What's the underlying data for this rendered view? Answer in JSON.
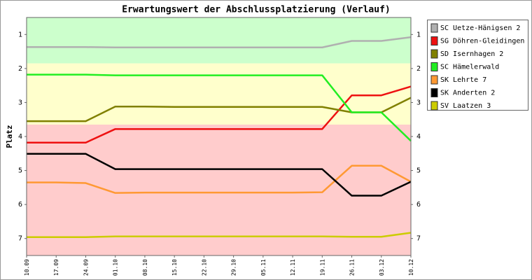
{
  "chart_data": {
    "type": "line",
    "title": "Erwartungswert der Abschlussplatzierung (Verlauf)",
    "y_label": "Platz",
    "categories": [
      "10.09",
      "17.09",
      "24.09",
      "01.10",
      "08.10",
      "15.10",
      "22.10",
      "29.10",
      "05.11",
      "12.11",
      "19.11",
      "26.11",
      "03.12",
      "10.12"
    ],
    "ylim": [
      7.5,
      0.5
    ],
    "yticks": [
      1,
      2,
      3,
      4,
      5,
      6,
      7
    ],
    "bands": [
      {
        "from": 0.5,
        "to": 1.85,
        "color": "#ccffcc"
      },
      {
        "from": 1.85,
        "to": 3.65,
        "color": "#ffffcc"
      },
      {
        "from": 3.65,
        "to": 7.5,
        "color": "#ffcccc"
      }
    ],
    "legend": "right",
    "series": [
      {
        "name": "SC Uetze-Hänigsen 2",
        "color": "#b0b0b0",
        "values": [
          1.37,
          1.37,
          1.37,
          1.38,
          1.38,
          1.38,
          1.38,
          1.38,
          1.38,
          1.38,
          1.38,
          1.19,
          1.19,
          1.08
        ]
      },
      {
        "name": "SG Döhren-Gleidingen",
        "color": "#ee1111",
        "values": [
          4.18,
          4.18,
          4.18,
          3.78,
          3.78,
          3.78,
          3.78,
          3.78,
          3.78,
          3.78,
          3.78,
          2.79,
          2.79,
          2.53
        ]
      },
      {
        "name": "SD Isernhagen 2",
        "color": "#808000",
        "values": [
          3.55,
          3.55,
          3.55,
          3.12,
          3.12,
          3.13,
          3.13,
          3.13,
          3.13,
          3.13,
          3.13,
          3.29,
          3.29,
          2.86
        ]
      },
      {
        "name": "SC Hämelerwald",
        "color": "#22ee22",
        "values": [
          2.18,
          2.18,
          2.18,
          2.2,
          2.2,
          2.2,
          2.2,
          2.2,
          2.2,
          2.2,
          2.2,
          3.29,
          3.29,
          4.13
        ]
      },
      {
        "name": "SK Lehrte 7",
        "color": "#ff9933",
        "values": [
          5.35,
          5.35,
          5.37,
          5.66,
          5.65,
          5.65,
          5.65,
          5.65,
          5.65,
          5.65,
          5.64,
          4.86,
          4.86,
          5.33
        ]
      },
      {
        "name": "SK Anderten 2",
        "color": "#000000",
        "values": [
          4.51,
          4.51,
          4.51,
          4.96,
          4.96,
          4.96,
          4.96,
          4.96,
          4.96,
          4.96,
          4.96,
          5.74,
          5.74,
          5.33
        ]
      },
      {
        "name": "SV Laatzen 3",
        "color": "#cccc00",
        "values": [
          6.96,
          6.96,
          6.96,
          6.94,
          6.94,
          6.94,
          6.94,
          6.94,
          6.94,
          6.94,
          6.94,
          6.95,
          6.95,
          6.83
        ]
      }
    ]
  }
}
